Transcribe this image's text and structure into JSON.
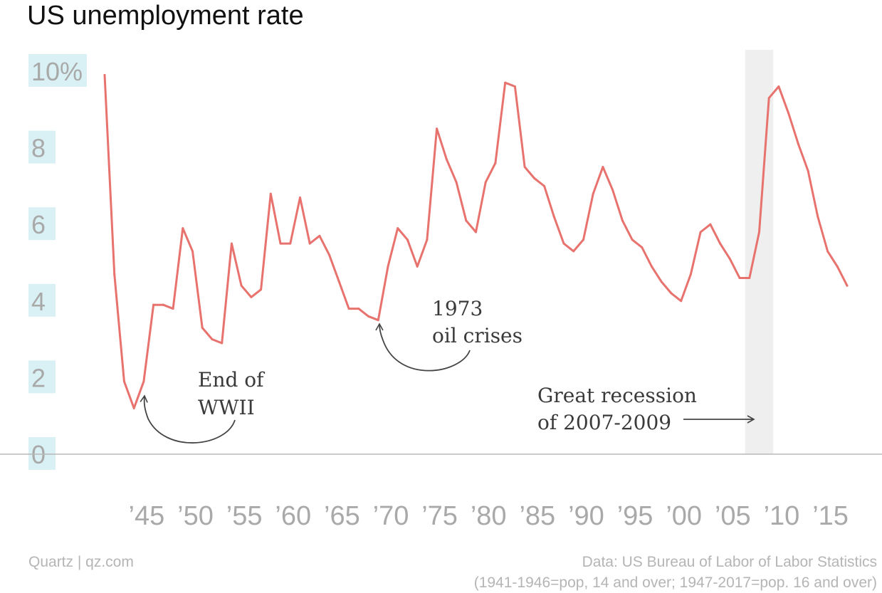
{
  "chart_data": {
    "type": "line",
    "title": "US unemployment rate",
    "ylim": [
      0,
      10
    ],
    "yticks": [
      {
        "value": 0,
        "label": "0"
      },
      {
        "value": 2,
        "label": "2"
      },
      {
        "value": 4,
        "label": "4"
      },
      {
        "value": 6,
        "label": "6"
      },
      {
        "value": 8,
        "label": "8"
      },
      {
        "value": 10,
        "label": "10%"
      }
    ],
    "xlim": [
      1941,
      2017
    ],
    "xticks": [
      {
        "value": 1945,
        "label": "’45"
      },
      {
        "value": 1950,
        "label": "’50"
      },
      {
        "value": 1955,
        "label": "’55"
      },
      {
        "value": 1960,
        "label": "’60"
      },
      {
        "value": 1965,
        "label": "’65"
      },
      {
        "value": 1970,
        "label": "’70"
      },
      {
        "value": 1975,
        "label": "’75"
      },
      {
        "value": 1980,
        "label": "’80"
      },
      {
        "value": 1985,
        "label": "’85"
      },
      {
        "value": 1990,
        "label": "’90"
      },
      {
        "value": 1995,
        "label": "’95"
      },
      {
        "value": 2000,
        "label": "’00"
      },
      {
        "value": 2005,
        "label": "’05"
      },
      {
        "value": 2010,
        "label": "’10"
      },
      {
        "value": 2015,
        "label": "’15"
      }
    ],
    "grid": false,
    "series": [
      {
        "color": "#e8726d",
        "x": [
          1941,
          1942,
          1943,
          1944,
          1945,
          1946,
          1947,
          1948,
          1949,
          1950,
          1951,
          1952,
          1953,
          1954,
          1955,
          1956,
          1957,
          1958,
          1959,
          1960,
          1961,
          1962,
          1963,
          1964,
          1965,
          1966,
          1967,
          1968,
          1969,
          1970,
          1971,
          1972,
          1973,
          1974,
          1975,
          1976,
          1977,
          1978,
          1979,
          1980,
          1981,
          1982,
          1983,
          1984,
          1985,
          1986,
          1987,
          1988,
          1989,
          1990,
          1991,
          1992,
          1993,
          1994,
          1995,
          1996,
          1997,
          1998,
          1999,
          2000,
          2001,
          2002,
          2003,
          2004,
          2005,
          2006,
          2007,
          2008,
          2009,
          2010,
          2011,
          2012,
          2013,
          2014,
          2015,
          2016,
          2017
        ],
        "y": [
          9.9,
          4.7,
          1.9,
          1.2,
          1.9,
          3.9,
          3.9,
          3.8,
          5.9,
          5.3,
          3.3,
          3.0,
          2.9,
          5.5,
          4.4,
          4.1,
          4.3,
          6.8,
          5.5,
          5.5,
          6.7,
          5.5,
          5.7,
          5.2,
          4.5,
          3.8,
          3.8,
          3.6,
          3.5,
          4.9,
          5.9,
          5.6,
          4.9,
          5.6,
          8.5,
          7.7,
          7.1,
          6.1,
          5.8,
          7.1,
          7.6,
          9.7,
          9.6,
          7.5,
          7.2,
          7.0,
          6.2,
          5.5,
          5.3,
          5.6,
          6.8,
          7.5,
          6.9,
          6.1,
          5.6,
          5.4,
          4.9,
          4.5,
          4.2,
          4.0,
          4.7,
          5.8,
          6.0,
          5.5,
          5.1,
          4.6,
          4.6,
          5.8,
          9.3,
          9.6,
          8.9,
          8.1,
          7.4,
          6.2,
          5.3,
          4.9,
          4.4
        ]
      }
    ],
    "shaded_regions": [
      {
        "x_start": 2007,
        "x_end": 2009
      }
    ],
    "annotations": [
      {
        "lines": [
          "End of",
          "WWII"
        ],
        "target_x": 1945
      },
      {
        "lines": [
          "1973",
          "oil crises"
        ],
        "target_x": 1969
      },
      {
        "lines": [
          "Great recession",
          "of 2007-2009"
        ],
        "target_x": 2007
      }
    ]
  },
  "footer": {
    "credit_left": "Quartz | qz.com",
    "source_line1": "Data: US Bureau of Labor of Labor Statistics",
    "source_line2": "(1941-1946=pop, 14 and over; 1947-2017=pop. 16 and over)"
  }
}
